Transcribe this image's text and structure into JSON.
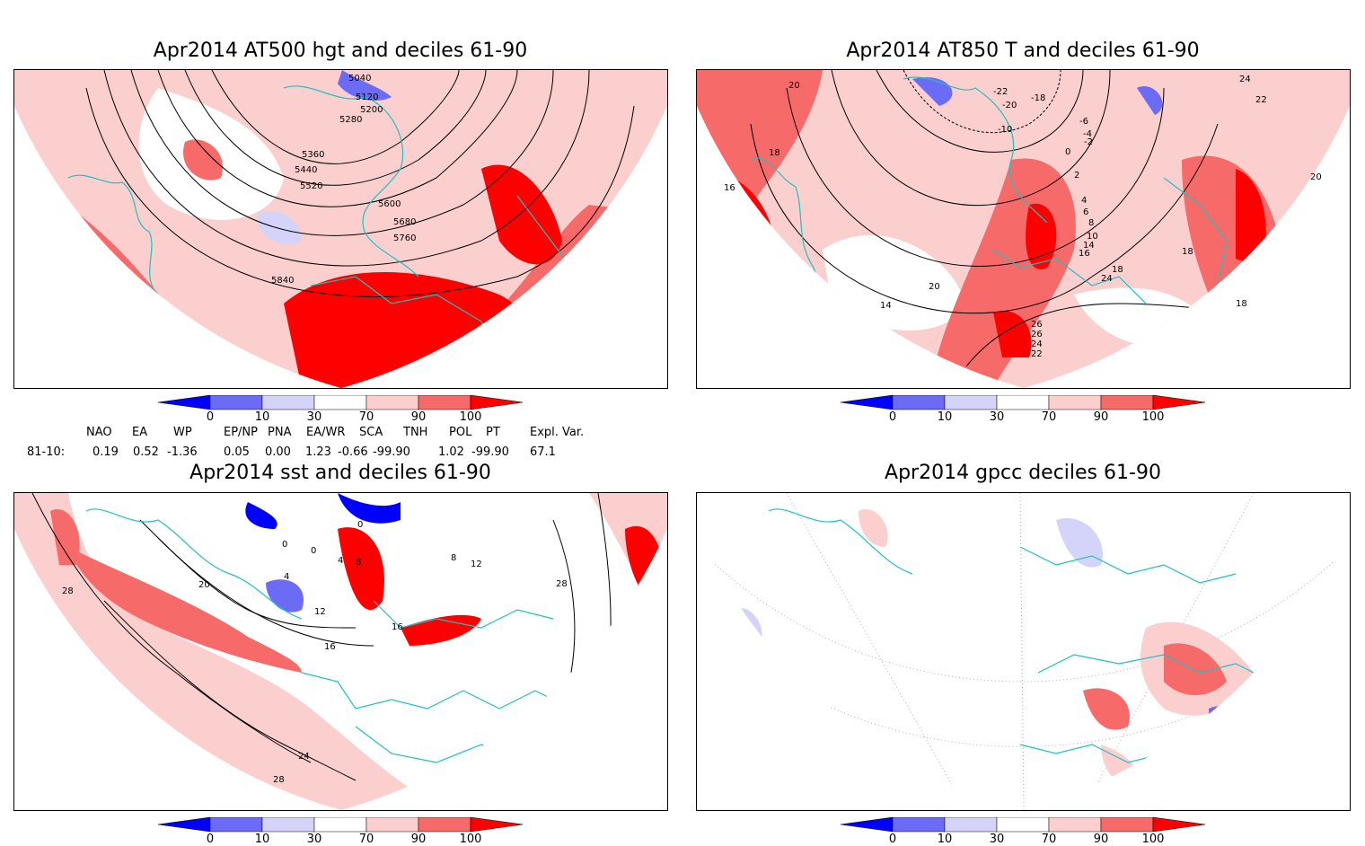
{
  "panels": [
    {
      "title": "Apr2014 AT500 hgt and deciles 61-90",
      "contour_labels": [
        "5040",
        "5120",
        "5200",
        "5280",
        "5360",
        "5440",
        "5520",
        "5600",
        "5680",
        "5760",
        "5840"
      ]
    },
    {
      "title": "Apr2014 AT850 T and deciles 61-90",
      "contour_labels": [
        "20",
        "18",
        "24",
        "22",
        "-22",
        "-18",
        "-20",
        "-10",
        "-6",
        "-4",
        "-2",
        "0",
        "2",
        "4",
        "6",
        "8",
        "10",
        "14",
        "16",
        "18",
        "24",
        "26",
        "26",
        "24",
        "22",
        "20",
        "14",
        "16",
        "18",
        "20",
        "18"
      ]
    },
    {
      "title": "Apr2014 sst and deciles 61-90",
      "contour_labels": [
        "0",
        "0",
        "0",
        "4",
        "8",
        "4",
        "20",
        "28",
        "12",
        "16",
        "16",
        "24",
        "28",
        "12",
        "28",
        "8"
      ]
    },
    {
      "title": "Apr2014 gpcc deciles 61-90",
      "contour_labels": []
    }
  ],
  "colorbar": {
    "labels": [
      "0",
      "10",
      "30",
      "70",
      "90",
      "100"
    ],
    "colors": [
      "#0000ff",
      "#6b6bf5",
      "#d4d4fa",
      "#ffffff",
      "#fccfcf",
      "#f76a6a",
      "#ff0000"
    ]
  },
  "teleconnections": {
    "headers": [
      "NAO",
      "EA",
      "WP",
      "EP/NP",
      "PNA",
      "EA/WR",
      "SCA",
      "TNH",
      "POL",
      "PT",
      "Expl. Var."
    ],
    "row_label": "81-10:",
    "values": [
      "0.19",
      "0.52",
      "-1.36",
      "0.05",
      "0.00",
      "1.23",
      "-0.66",
      "-99.90",
      "1.02",
      "-99.90",
      "67.1"
    ]
  }
}
